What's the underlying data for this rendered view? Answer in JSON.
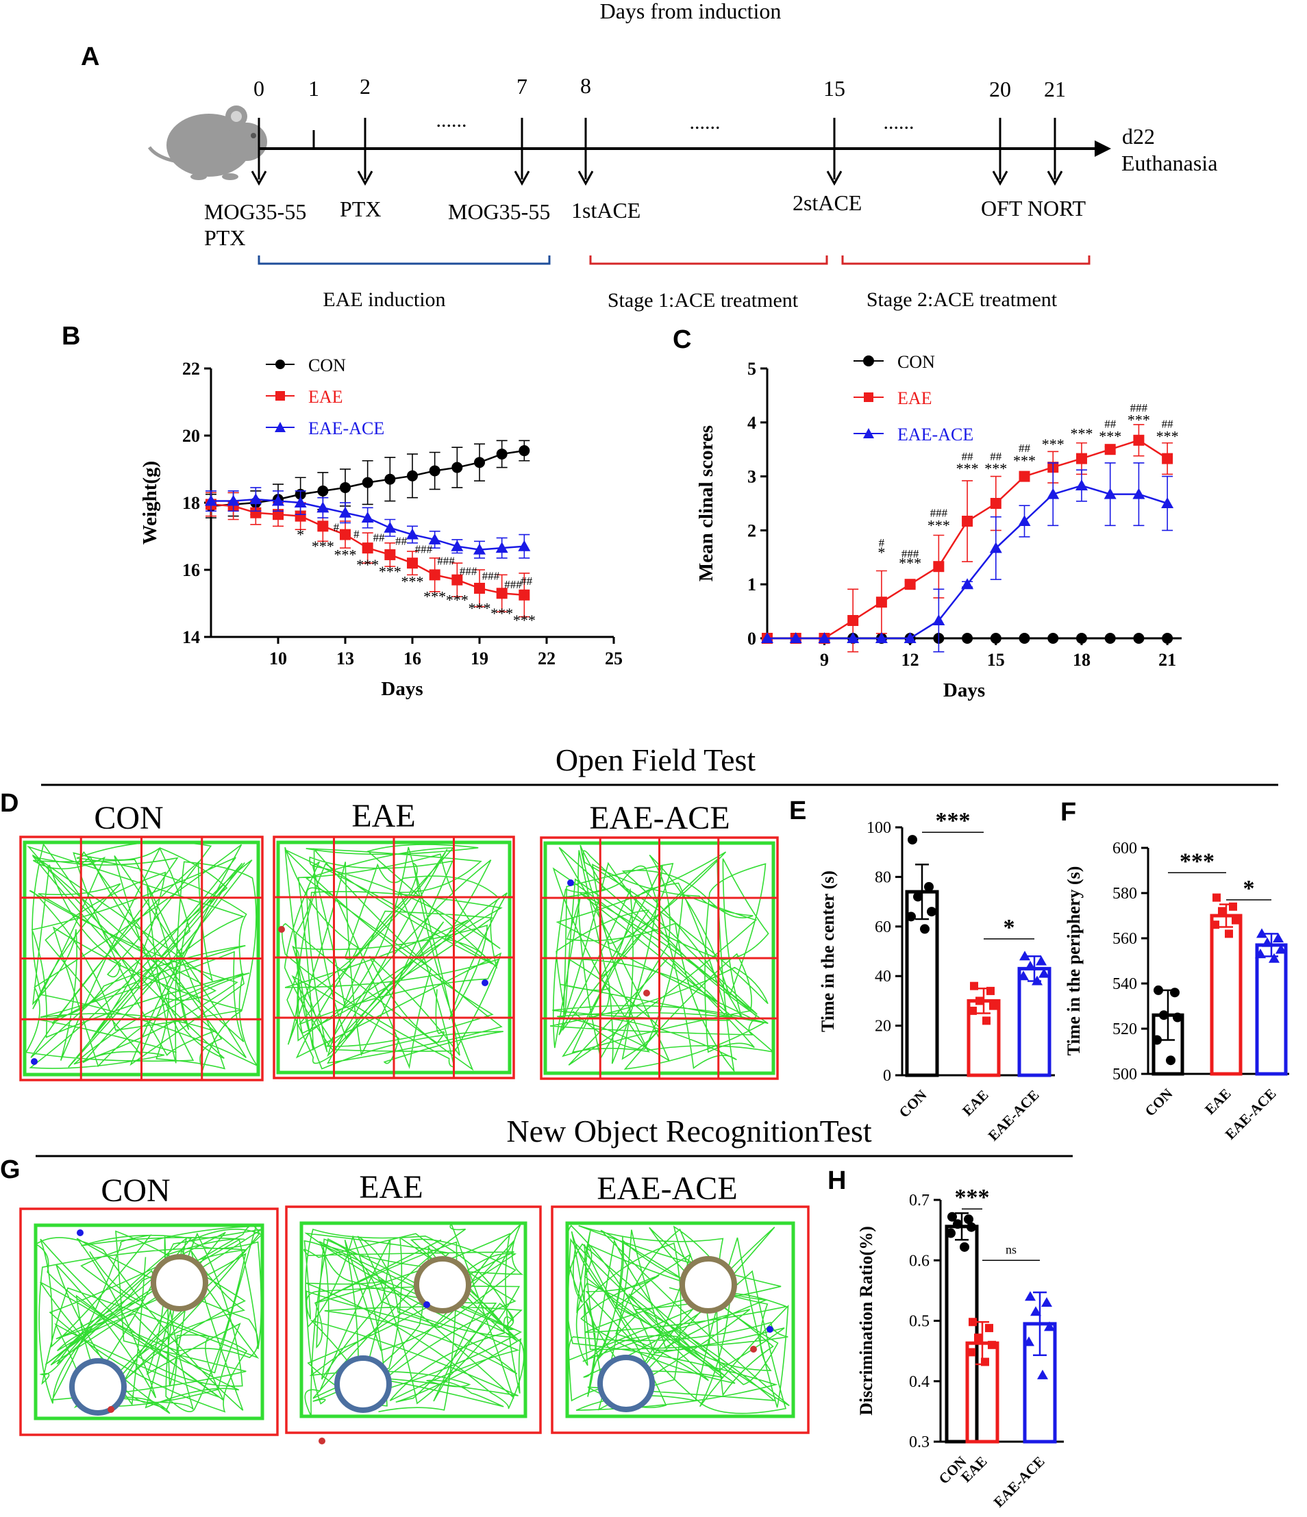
{
  "header": {
    "caption": "Days from induction"
  },
  "panels": {
    "A": "A",
    "B": "B",
    "C": "C",
    "D": "D",
    "E": "E",
    "F": "F",
    "G": "G",
    "H": "H"
  },
  "timeline": {
    "days": [
      "0",
      "1",
      "2",
      "7",
      "8",
      "15",
      "20",
      "21"
    ],
    "dots": [
      "......",
      "......",
      "......"
    ],
    "end_day": "d22",
    "end_label": "Euthanasia",
    "events": [
      "MOG35-55",
      "PTX",
      "PTX",
      "MOG35-55",
      "1stACE",
      "2stACE",
      "OFT NORT"
    ],
    "stages": [
      "EAE induction",
      "Stage 1:ACE treatment",
      "Stage 2:ACE treatment"
    ],
    "colors": {
      "induction": "#1f4e9a",
      "treatment": "#d62728"
    }
  },
  "legend": [
    "CON",
    "EAE",
    "EAE-ACE"
  ],
  "colors": {
    "CON": "#000000",
    "EAE": "#ee1c1c",
    "EAE-ACE": "#1a1ae6",
    "track": "#33dd33",
    "grid": "#ee2222",
    "ring": "#8b7d55",
    "ring2": "#4b6fa0"
  },
  "open_field": {
    "title": "Open Field Test",
    "conditions": [
      "CON",
      "EAE",
      "EAE-ACE"
    ]
  },
  "nort": {
    "title": "New Object RecognitionTest",
    "conditions": [
      "CON",
      "EAE",
      "EAE-ACE"
    ]
  },
  "chart_data": [
    {
      "id": "B",
      "type": "line",
      "xlabel": "Days",
      "ylabel": "Weight(g)",
      "xlim": [
        7,
        25
      ],
      "ylim": [
        14,
        22
      ],
      "xticks": [
        10,
        13,
        16,
        19,
        22,
        25
      ],
      "yticks": [
        14,
        16,
        18,
        20,
        22
      ],
      "legend": "top-left",
      "series": [
        {
          "name": "CON",
          "marker": "circle",
          "x": [
            7,
            8,
            9,
            10,
            11,
            12,
            13,
            14,
            15,
            16,
            17,
            18,
            19,
            20,
            21
          ],
          "y": [
            17.9,
            17.95,
            18.0,
            18.1,
            18.25,
            18.35,
            18.45,
            18.6,
            18.7,
            18.8,
            18.95,
            19.05,
            19.2,
            19.45,
            19.55
          ],
          "err": [
            0.35,
            0.35,
            0.35,
            0.45,
            0.5,
            0.55,
            0.55,
            0.65,
            0.65,
            0.65,
            0.55,
            0.6,
            0.55,
            0.4,
            0.3
          ]
        },
        {
          "name": "EAE",
          "marker": "square",
          "x": [
            7,
            8,
            9,
            10,
            11,
            12,
            13,
            14,
            15,
            16,
            17,
            18,
            19,
            20,
            21
          ],
          "y": [
            17.95,
            17.9,
            17.7,
            17.65,
            17.6,
            17.3,
            17.05,
            16.65,
            16.45,
            16.2,
            15.85,
            15.7,
            15.45,
            15.3,
            15.25
          ],
          "err": [
            0.35,
            0.4,
            0.35,
            0.35,
            0.4,
            0.45,
            0.4,
            0.45,
            0.35,
            0.35,
            0.5,
            0.5,
            0.55,
            0.55,
            0.65
          ]
        },
        {
          "name": "EAE-ACE",
          "marker": "triangle",
          "x": [
            7,
            8,
            9,
            10,
            11,
            12,
            13,
            14,
            15,
            16,
            17,
            18,
            19,
            20,
            21
          ],
          "y": [
            18.05,
            18.05,
            18.1,
            18.05,
            18.0,
            17.85,
            17.7,
            17.55,
            17.25,
            17.05,
            16.9,
            16.7,
            16.6,
            16.65,
            16.7
          ],
          "err": [
            0.3,
            0.3,
            0.35,
            0.3,
            0.35,
            0.3,
            0.3,
            0.3,
            0.25,
            0.25,
            0.25,
            0.2,
            0.25,
            0.3,
            0.35
          ]
        }
      ],
      "annotations": [
        {
          "x": 11,
          "y": 16.9,
          "text": "*"
        },
        {
          "x": 12,
          "y": 16.55,
          "text": "***"
        },
        {
          "x": 12.6,
          "y": 17.15,
          "text": "#"
        },
        {
          "x": 13,
          "y": 16.3,
          "text": "***"
        },
        {
          "x": 13.5,
          "y": 16.95,
          "text": "#"
        },
        {
          "x": 14,
          "y": 16.0,
          "text": "***"
        },
        {
          "x": 14.5,
          "y": 16.85,
          "text": "##"
        },
        {
          "x": 15,
          "y": 15.8,
          "text": "***"
        },
        {
          "x": 15.5,
          "y": 16.75,
          "text": "##"
        },
        {
          "x": 16,
          "y": 15.5,
          "text": "***"
        },
        {
          "x": 16.5,
          "y": 16.5,
          "text": "###"
        },
        {
          "x": 17,
          "y": 15.05,
          "text": "***"
        },
        {
          "x": 17.5,
          "y": 16.15,
          "text": "###"
        },
        {
          "x": 18,
          "y": 14.95,
          "text": "***"
        },
        {
          "x": 18.5,
          "y": 15.85,
          "text": "###"
        },
        {
          "x": 19,
          "y": 14.7,
          "text": "***"
        },
        {
          "x": 19.5,
          "y": 15.7,
          "text": "###"
        },
        {
          "x": 20,
          "y": 14.55,
          "text": "***"
        },
        {
          "x": 20.5,
          "y": 15.45,
          "text": "###"
        },
        {
          "x": 21,
          "y": 14.35,
          "text": "***"
        },
        {
          "x": 21.1,
          "y": 15.55,
          "text": "##"
        }
      ]
    },
    {
      "id": "C",
      "type": "line",
      "xlabel": "Days",
      "ylabel": "Mean clinal scores",
      "xlim": [
        7,
        21.5
      ],
      "ylim": [
        0,
        5
      ],
      "xticks": [
        9,
        12,
        15,
        18,
        21
      ],
      "yticks": [
        0,
        1,
        2,
        3,
        4,
        5
      ],
      "legend": "top-left",
      "series": [
        {
          "name": "CON",
          "marker": "circle",
          "x": [
            7,
            8,
            9,
            10,
            11,
            12,
            13,
            14,
            15,
            16,
            17,
            18,
            19,
            20,
            21
          ],
          "y": [
            0,
            0,
            0,
            0,
            0,
            0,
            0,
            0,
            0,
            0,
            0,
            0,
            0,
            0,
            0
          ],
          "err": [
            0,
            0,
            0,
            0,
            0,
            0,
            0,
            0,
            0,
            0,
            0,
            0,
            0,
            0,
            0
          ]
        },
        {
          "name": "EAE",
          "marker": "square",
          "x": [
            7,
            8,
            9,
            10,
            11,
            12,
            13,
            14,
            15,
            16,
            17,
            18,
            19,
            20,
            21
          ],
          "y": [
            0,
            0,
            0,
            0.33,
            0.67,
            1.0,
            1.33,
            2.17,
            2.5,
            3.0,
            3.17,
            3.33,
            3.5,
            3.67,
            3.33
          ],
          "err": [
            0,
            0,
            0,
            0.58,
            0.58,
            0.05,
            0.58,
            0.75,
            0.5,
            0.05,
            0.29,
            0.29,
            0.05,
            0.29,
            0.29
          ]
        },
        {
          "name": "EAE-ACE",
          "marker": "triangle",
          "x": [
            7,
            8,
            9,
            10,
            11,
            12,
            13,
            14,
            15,
            16,
            17,
            18,
            19,
            20,
            21
          ],
          "y": [
            0,
            0,
            0,
            0,
            0,
            0,
            0.33,
            1.0,
            1.67,
            2.17,
            2.67,
            2.83,
            2.67,
            2.67,
            2.5
          ],
          "err": [
            0,
            0,
            0,
            0,
            0,
            0,
            0.58,
            0.05,
            0.58,
            0.29,
            0.58,
            0.29,
            0.58,
            0.58,
            0.5
          ]
        }
      ],
      "annotations": [
        {
          "x": 11,
          "y": 1.5,
          "text": "*"
        },
        {
          "x": 11,
          "y": 1.7,
          "text": "#"
        },
        {
          "x": 12,
          "y": 1.3,
          "text": "***"
        },
        {
          "x": 12,
          "y": 1.5,
          "text": "###"
        },
        {
          "x": 13,
          "y": 2.0,
          "text": "***"
        },
        {
          "x": 13,
          "y": 2.25,
          "text": "###"
        },
        {
          "x": 14,
          "y": 3.05,
          "text": "***"
        },
        {
          "x": 14,
          "y": 3.3,
          "text": "##"
        },
        {
          "x": 15,
          "y": 3.05,
          "text": "***"
        },
        {
          "x": 15,
          "y": 3.3,
          "text": "##"
        },
        {
          "x": 16,
          "y": 3.2,
          "text": "***"
        },
        {
          "x": 16,
          "y": 3.45,
          "text": "##"
        },
        {
          "x": 17,
          "y": 3.5,
          "text": "***"
        },
        {
          "x": 18,
          "y": 3.7,
          "text": "***"
        },
        {
          "x": 19,
          "y": 3.65,
          "text": "***"
        },
        {
          "x": 19,
          "y": 3.9,
          "text": "##"
        },
        {
          "x": 20,
          "y": 3.95,
          "text": "***"
        },
        {
          "x": 20,
          "y": 4.2,
          "text": "###"
        },
        {
          "x": 21,
          "y": 3.65,
          "text": "***"
        },
        {
          "x": 21,
          "y": 3.9,
          "text": "##"
        }
      ]
    },
    {
      "id": "E",
      "type": "bar",
      "ylabel": "Time in the center (s)",
      "categories": [
        "CON",
        "EAE",
        "EAE-ACE"
      ],
      "values": [
        74,
        30,
        43
      ],
      "err": [
        11,
        5,
        5
      ],
      "points": [
        [
          95,
          76,
          72,
          66,
          64,
          59
        ],
        [
          36,
          34,
          30,
          28,
          26,
          22
        ],
        [
          48,
          46,
          44,
          41,
          40,
          38
        ]
      ],
      "ylim": [
        0,
        100
      ],
      "yticks": [
        0,
        20,
        40,
        60,
        80,
        100
      ],
      "significance": [
        {
          "from": 0,
          "to": 1,
          "level": 98,
          "text": "***"
        },
        {
          "from": 1,
          "to": 2,
          "level": 55,
          "text": "*"
        }
      ]
    },
    {
      "id": "F",
      "type": "bar",
      "ylabel": "Time in the periphery (s)",
      "categories": [
        "CON",
        "EAE",
        "EAE-ACE"
      ],
      "values": [
        526,
        570,
        557
      ],
      "err": [
        11,
        5,
        5
      ],
      "points": [
        [
          537,
          536,
          526,
          525,
          515,
          506
        ],
        [
          578,
          574,
          572,
          568,
          566,
          562
        ],
        [
          562,
          560,
          558,
          555,
          553,
          551
        ]
      ],
      "ylim": [
        500,
        600
      ],
      "yticks": [
        500,
        520,
        540,
        560,
        580,
        600
      ],
      "significance": [
        {
          "from": 0,
          "to": 1,
          "level": 589,
          "text": "***"
        },
        {
          "from": 1,
          "to": 2,
          "level": 577,
          "text": "*"
        }
      ]
    },
    {
      "id": "H",
      "type": "bar",
      "ylabel": "Discrimination Ratio(%)",
      "categories": [
        "CON",
        "EAE",
        "EAE-ACE"
      ],
      "values": [
        0.656,
        0.463,
        0.495
      ],
      "err": [
        0.022,
        0.035,
        0.052
      ],
      "points": [
        [
          0.672,
          0.668,
          0.66,
          0.655,
          0.645,
          0.622
        ],
        [
          0.498,
          0.488,
          0.472,
          0.46,
          0.448,
          0.432
        ],
        [
          0.54,
          0.53,
          0.515,
          0.49,
          0.465,
          0.41
        ]
      ],
      "ylim": [
        0.3,
        0.7
      ],
      "yticks": [
        0.3,
        0.4,
        0.5,
        0.6,
        0.7
      ],
      "significance": [
        {
          "from": 0,
          "to": 1,
          "level": 0.685,
          "text": "***"
        },
        {
          "from": 1,
          "to": 2,
          "level": 0.6,
          "text": "ns"
        }
      ]
    }
  ]
}
